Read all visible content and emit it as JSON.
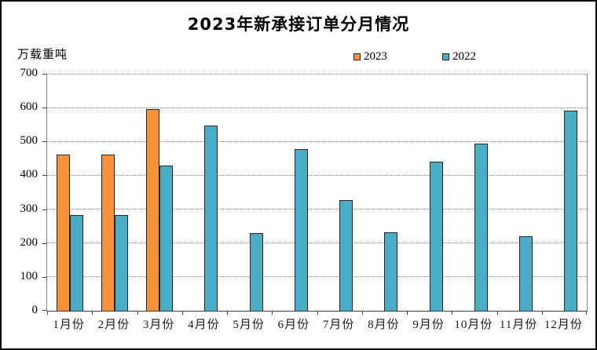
{
  "title": "2023年新承接订单分月情况",
  "unit_label": "万载重吨",
  "chart_data": {
    "type": "bar",
    "categories": [
      "1月份",
      "2月份",
      "3月份",
      "4月份",
      "5月份",
      "6月份",
      "7月份",
      "8月份",
      "9月份",
      "10月份",
      "11月份",
      "12月份"
    ],
    "series": [
      {
        "name": "2023",
        "color": "#F5923E",
        "values": [
          461,
          462,
          595,
          null,
          null,
          null,
          null,
          null,
          null,
          null,
          null,
          null
        ]
      },
      {
        "name": "2022",
        "color": "#4BACC6",
        "values": [
          282,
          283,
          430,
          548,
          230,
          477,
          326,
          232,
          440,
          493,
          220,
          591
        ]
      }
    ],
    "title": "2023年新承接订单分月情况",
    "xlabel": "",
    "ylabel": "万载重吨",
    "ylim": [
      0,
      700
    ],
    "yticks": [
      0,
      100,
      200,
      300,
      400,
      500,
      600,
      700
    ],
    "grid": "horizontal-dotted",
    "legend_position": "top-center",
    "bar_border_color": "#262626"
  },
  "colors": {
    "background": "#FFFFFF",
    "frame_border": "#000000",
    "gridline": "#808080",
    "axis": "#404040",
    "text": "#000000"
  }
}
